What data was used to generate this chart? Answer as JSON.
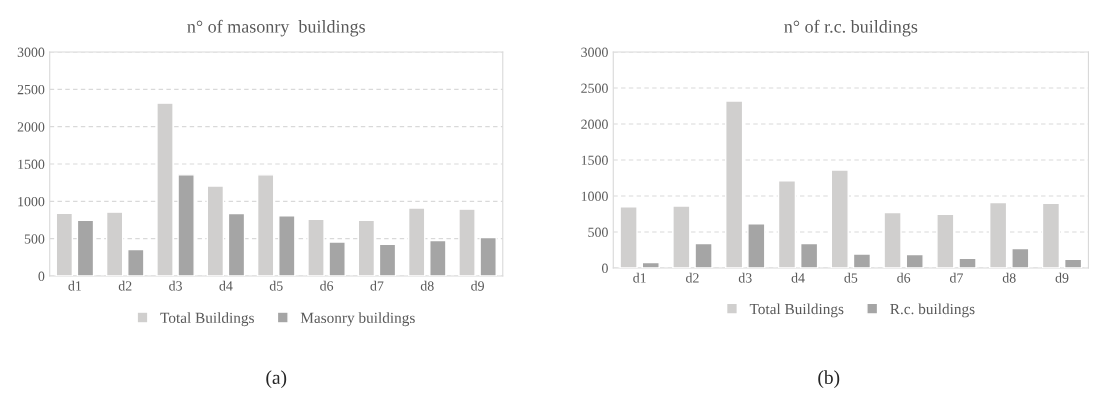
{
  "chart_data": [
    {
      "type": "bar",
      "title": "n° of masonry  buildings",
      "categories": [
        "d1",
        "d2",
        "d3",
        "d4",
        "d5",
        "d6",
        "d7",
        "d8",
        "d9"
      ],
      "series": [
        {
          "name": "Total Buildings",
          "color": "#d0cfce",
          "values": [
            840,
            855,
            2315,
            1205,
            1355,
            760,
            745,
            910,
            895
          ]
        },
        {
          "name": "Masonry buildings",
          "color": "#a5a5a5",
          "values": [
            745,
            355,
            1355,
            835,
            805,
            455,
            425,
            475,
            515
          ]
        }
      ],
      "ylim": [
        0,
        3000
      ],
      "yticks": [
        0,
        500,
        1000,
        1500,
        2000,
        2500,
        3000
      ],
      "grid": "y",
      "legend": "bottom",
      "annotations": [
        "(a)"
      ]
    },
    {
      "type": "bar",
      "title": "n° of r.c. buildings",
      "categories": [
        "d1",
        "d2",
        "d3",
        "d4",
        "d5",
        "d6",
        "d7",
        "d8",
        "d9"
      ],
      "series": [
        {
          "name": "Total Buildings",
          "color": "#d0cfce",
          "values": [
            850,
            860,
            2320,
            1210,
            1360,
            770,
            745,
            910,
            900
          ]
        },
        {
          "name": "R.c. buildings",
          "color": "#a5a5a5",
          "values": [
            75,
            340,
            615,
            340,
            195,
            185,
            135,
            270,
            120
          ]
        }
      ],
      "ylim": [
        0,
        3000
      ],
      "yticks": [
        0,
        500,
        1000,
        1500,
        2000,
        2500,
        3000
      ],
      "grid": "y",
      "legend": "bottom",
      "annotations": [
        "(b)"
      ]
    }
  ]
}
